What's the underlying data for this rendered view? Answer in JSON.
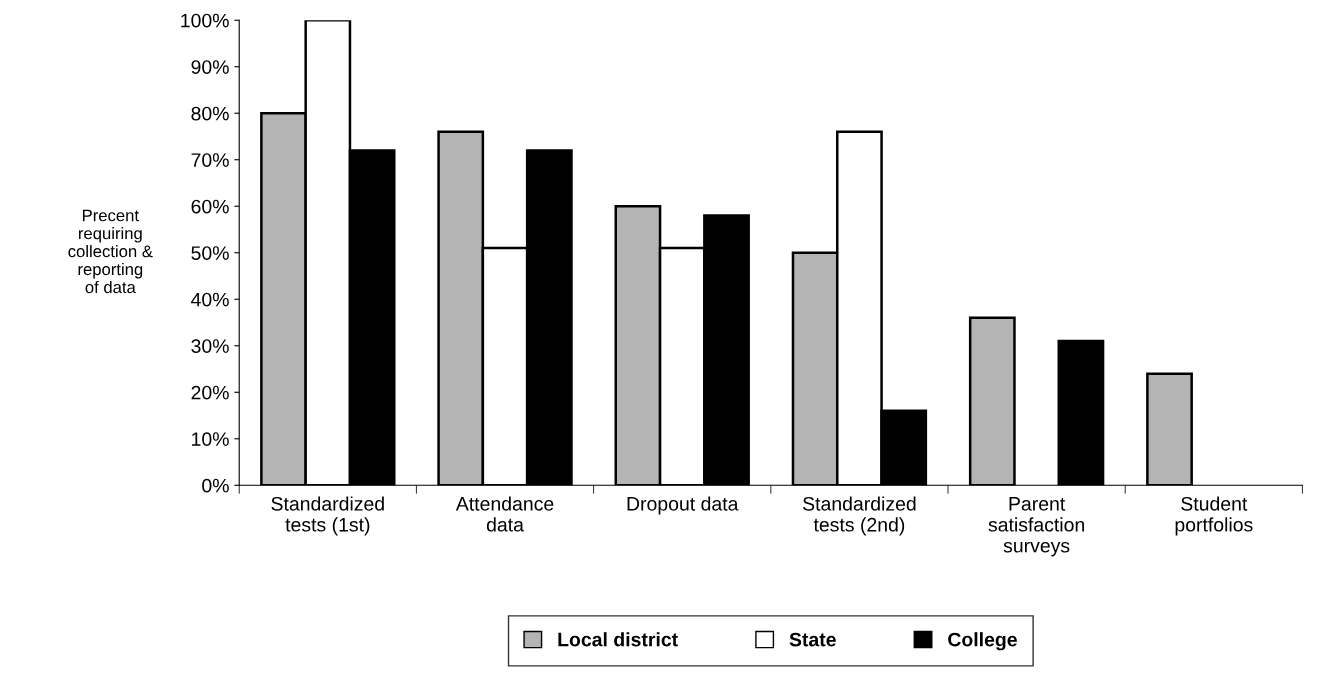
{
  "chart_data": {
    "type": "bar",
    "ylabel": "Precent\nrequiring\ncollection &\nreporting\nof data",
    "categories": [
      "Standardized\ntests (1st)",
      "Attendance\ndata",
      "Dropout data",
      "Standardized\ntests (2nd)",
      "Parent\nsatisfaction\nsurveys",
      "Student\nportfolios"
    ],
    "series": [
      {
        "name": "Local district",
        "color": "#b4b4b4",
        "values": [
          80,
          76,
          60,
          50,
          36,
          24
        ]
      },
      {
        "name": "State",
        "color": "#ffffff",
        "values": [
          100,
          51,
          51,
          76,
          null,
          null
        ]
      },
      {
        "name": "College",
        "color": "#000000",
        "values": [
          72,
          72,
          58,
          16,
          31,
          null
        ]
      }
    ],
    "ylim": [
      0,
      100
    ],
    "yticks": [
      {
        "value": 0,
        "label": "0%"
      },
      {
        "value": 10,
        "label": "10%"
      },
      {
        "value": 20,
        "label": "20%"
      },
      {
        "value": 30,
        "label": "30%"
      },
      {
        "value": 40,
        "label": "40%"
      },
      {
        "value": 50,
        "label": "50%"
      },
      {
        "value": 60,
        "label": "60%"
      },
      {
        "value": 70,
        "label": "70%"
      },
      {
        "value": 80,
        "label": "80%"
      },
      {
        "value": 90,
        "label": "90%"
      },
      {
        "value": 100,
        "label": "100%"
      }
    ],
    "grid": false,
    "legend": "bottom"
  }
}
